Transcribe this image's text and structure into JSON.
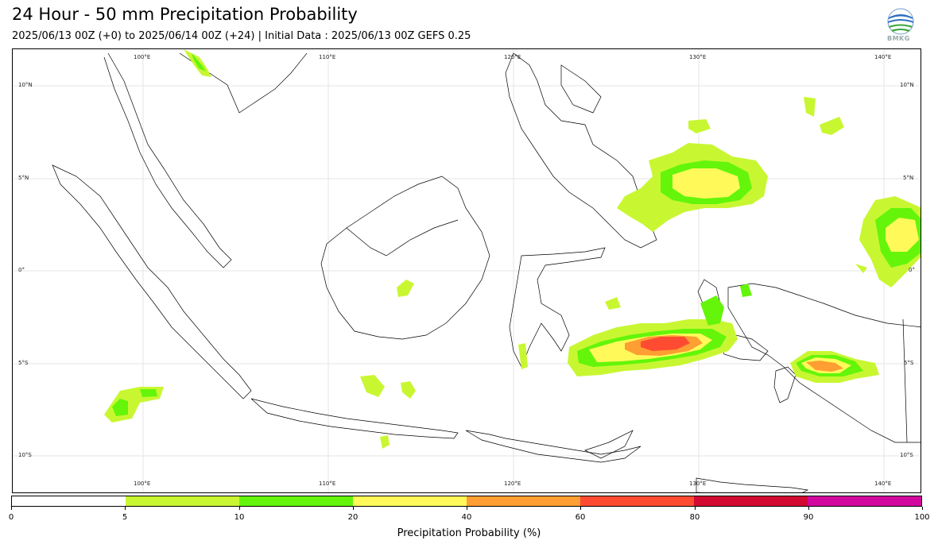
{
  "header": {
    "title": "24 Hour - 50 mm Precipitation Probability",
    "subtitle": "2025/06/13 00Z (+0) to 2025/06/14 00Z (+24) | Initial Data : 2025/06/13 00Z GEFS 0.25",
    "logo_text": "BMKG"
  },
  "map": {
    "lon_labels_top": [
      "100°E",
      "110°E",
      "120°E",
      "130°E",
      "140°E"
    ],
    "lon_labels_bottom": [
      "100°E",
      "110°E",
      "120°E",
      "130°E",
      "140°E"
    ],
    "lat_labels_left": [
      "10°N",
      "5°N",
      "0°",
      "5°S",
      "10°S"
    ],
    "lat_labels_right": [
      "10°N",
      "5°N",
      "0°",
      "5°S",
      "10°S"
    ],
    "region": "Indonesia"
  },
  "colorbar": {
    "label": "Precipitation Probability (%)",
    "ticks": [
      "0",
      "5",
      "10",
      "20",
      "40",
      "60",
      "80",
      "90",
      "100"
    ],
    "bins": [
      {
        "from": 0,
        "to": 5,
        "color": "#ffffff"
      },
      {
        "from": 5,
        "to": 10,
        "color": "#c8f732"
      },
      {
        "from": 10,
        "to": 20,
        "color": "#64f50a"
      },
      {
        "from": 20,
        "to": 40,
        "color": "#fffa5a"
      },
      {
        "from": 40,
        "to": 60,
        "color": "#ff9e32"
      },
      {
        "from": 60,
        "to": 80,
        "color": "#ff4b32"
      },
      {
        "from": 80,
        "to": 90,
        "color": "#d20a32"
      },
      {
        "from": 90,
        "to": 100,
        "color": "#d2089e"
      }
    ]
  }
}
